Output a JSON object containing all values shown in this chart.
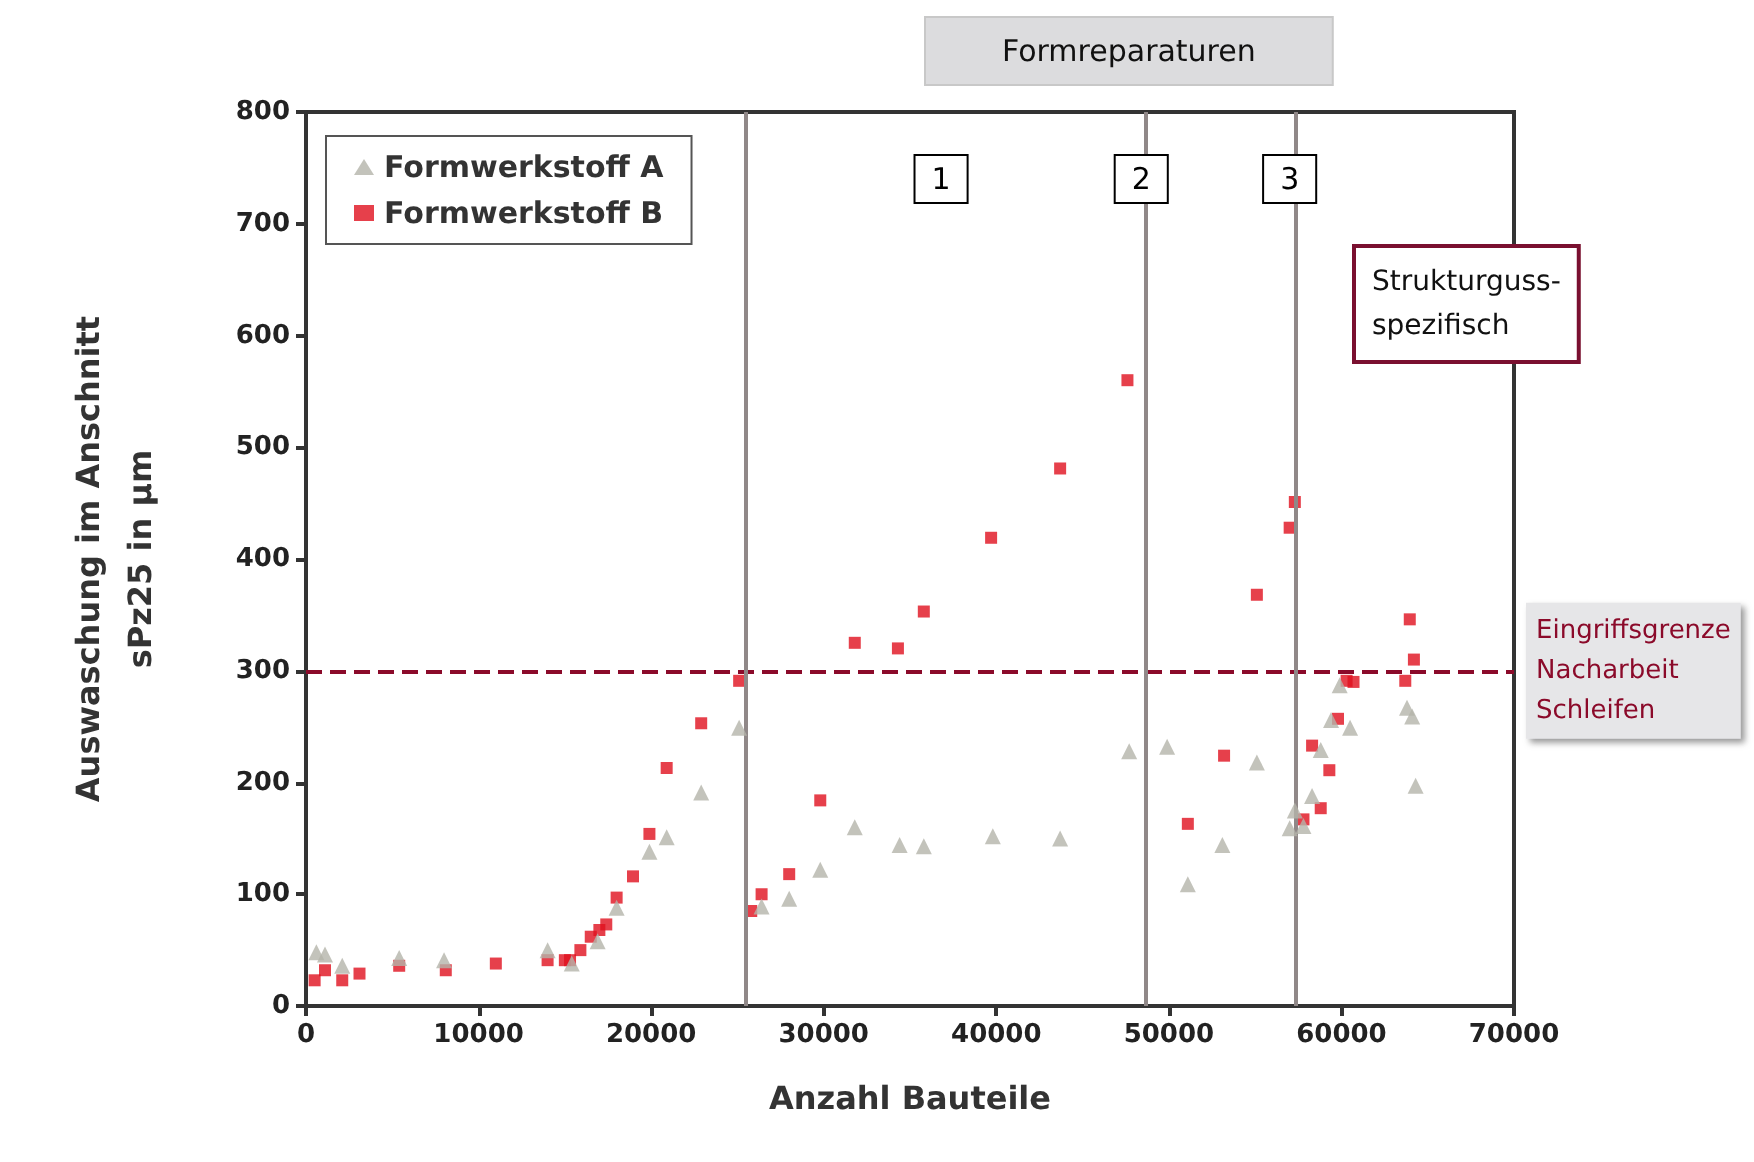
{
  "chart_data": {
    "type": "scatter",
    "xlabel": "Anzahl Bauteile",
    "ylabel": "Auswaschung im Anschnitt\nsPz25 in µm",
    "xlim": [
      0,
      70000
    ],
    "xticks": [
      0,
      10000,
      20000,
      30000,
      40000,
      50000,
      60000,
      70000
    ],
    "ylim": [
      0,
      800
    ],
    "yticks": [
      0,
      100,
      200,
      300,
      400,
      500,
      600,
      700,
      800
    ],
    "grid": false,
    "legend": "top left",
    "series": [
      {
        "name": "Formwerkstoff A",
        "color": "#b4b4aa",
        "marker": "triangle",
        "x": [
          600,
          1100,
          2100,
          5400,
          8000,
          14000,
          15400,
          16900,
          18000,
          19900,
          20900,
          22900,
          25100,
          26400,
          28000,
          29800,
          31800,
          34400,
          35800,
          39800,
          43700,
          47700,
          49900,
          51100,
          53100,
          55100,
          57000,
          57300,
          57800,
          58300,
          58800,
          59400,
          59900,
          60500,
          63800,
          64100,
          64300
        ],
        "values": [
          48,
          46,
          36,
          43,
          41,
          50,
          38,
          58,
          88,
          138,
          151,
          191,
          249,
          89,
          96,
          122,
          160,
          144,
          143,
          152,
          150,
          228,
          232,
          109,
          144,
          218,
          159,
          175,
          161,
          188,
          229,
          256,
          287,
          249,
          267,
          259,
          197
        ]
      },
      {
        "name": "Formwerkstoff B",
        "color": "#e0101e",
        "marker": "square",
        "x": [
          500,
          1100,
          2100,
          3100,
          5400,
          8100,
          11000,
          14000,
          15000,
          15300,
          15900,
          16500,
          17000,
          17400,
          18000,
          18950,
          19900,
          20900,
          22900,
          25100,
          25800,
          26400,
          28000,
          29800,
          31800,
          34300,
          35800,
          39700,
          43700,
          47600,
          51100,
          53200,
          55100,
          57000,
          57300,
          57800,
          58300,
          58800,
          59300,
          59800,
          60300,
          60700,
          63700,
          63960,
          64200
        ],
        "values": [
          23,
          32,
          23,
          29,
          36,
          32,
          38,
          41,
          41,
          41,
          50,
          62,
          68,
          73,
          97,
          116,
          154,
          213,
          253,
          291,
          85,
          100,
          118,
          184,
          325,
          320,
          353,
          419,
          481,
          560,
          163,
          224,
          368,
          428,
          451,
          167,
          233,
          177,
          211,
          257,
          291,
          290,
          291,
          346,
          310
        ]
      }
    ],
    "ref_lines": [
      {
        "axis": "y",
        "value": 300,
        "label": "Eingriffsgrenze\nNacharbeit\nSchleifen",
        "color": "#8b0a2a",
        "line_style": "dashed"
      },
      {
        "axis": "x",
        "value": 25500,
        "color": "#908888",
        "line_style": "solid"
      },
      {
        "axis": "x",
        "value": 48600,
        "color": "#908888",
        "line_style": "solid"
      },
      {
        "axis": "x",
        "value": 57300,
        "color": "#908888",
        "line_style": "solid"
      }
    ],
    "annotations": [
      "Formreparaturen",
      "Strukturguss-\nspezifisch",
      {
        "text": "1",
        "x": 36800,
        "y": 740
      },
      {
        "text": "2",
        "x": 48400,
        "y": 740
      },
      {
        "text": "3",
        "x": 57000,
        "y": 740
      }
    ]
  }
}
